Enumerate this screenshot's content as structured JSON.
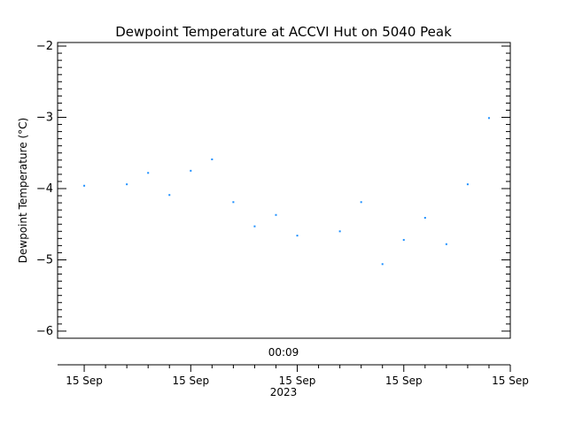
{
  "chart_data": {
    "type": "scatter",
    "title": "Dewpoint Temperature at ACCVI Hut on 5040 Peak",
    "ylabel": "Dewpoint Temperature (°C)",
    "ylim": [
      -6.1,
      -1.95
    ],
    "yticks": [
      -2,
      -3,
      -4,
      -5,
      -6
    ],
    "ytick_labels": [
      "−2",
      "−3",
      "−4",
      "−5",
      "−6"
    ],
    "xlim": [
      -0.25,
      4.0
    ],
    "time_label": "00:09",
    "xticks": [
      {
        "x": 0,
        "label": "15 Sep"
      },
      {
        "x": 1,
        "label": "15 Sep"
      },
      {
        "x": 2,
        "label": "15 Sep"
      },
      {
        "x": 3,
        "label": "15 Sep"
      },
      {
        "x": 4,
        "label": "15 Sep"
      }
    ],
    "xlabel": "2023",
    "marker_color": "#1e90ff",
    "points": [
      {
        "x": 0.0,
        "y": -3.96
      },
      {
        "x": 0.4,
        "y": -3.94
      },
      {
        "x": 0.6,
        "y": -3.78
      },
      {
        "x": 0.8,
        "y": -4.09
      },
      {
        "x": 1.0,
        "y": -3.75
      },
      {
        "x": 1.2,
        "y": -3.59
      },
      {
        "x": 1.4,
        "y": -4.19
      },
      {
        "x": 1.6,
        "y": -4.53
      },
      {
        "x": 1.8,
        "y": -4.37
      },
      {
        "x": 2.0,
        "y": -4.66
      },
      {
        "x": 2.4,
        "y": -4.6
      },
      {
        "x": 2.6,
        "y": -4.19
      },
      {
        "x": 2.8,
        "y": -5.06
      },
      {
        "x": 3.0,
        "y": -4.72
      },
      {
        "x": 3.2,
        "y": -4.41
      },
      {
        "x": 3.4,
        "y": -4.78
      },
      {
        "x": 3.6,
        "y": -3.94
      },
      {
        "x": 3.8,
        "y": -3.01
      }
    ]
  }
}
